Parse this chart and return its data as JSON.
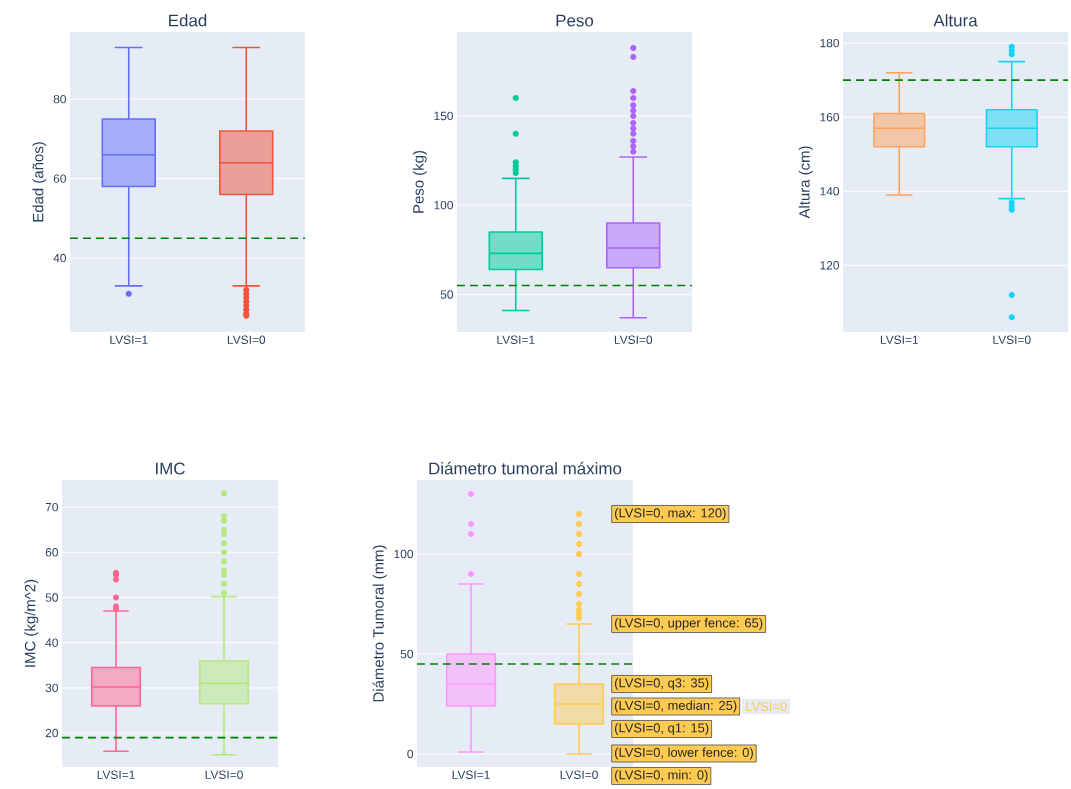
{
  "chart_data": [
    {
      "type": "box",
      "title": "Edad",
      "ylabel": "Edad (años)",
      "categories": [
        "LVSI=1",
        "LVSI=0"
      ],
      "colors": [
        "#636efa",
        "#ef553b"
      ],
      "ylim": [
        21.4,
        96.9
      ],
      "yticks": [
        40,
        60,
        80
      ],
      "grid": "y",
      "boxes": [
        {
          "low": 33,
          "q1": 58,
          "median": 66,
          "q3": 75,
          "high": 93,
          "outliers": [
            31
          ]
        },
        {
          "low": 33,
          "q1": 56,
          "median": 64,
          "q3": 72,
          "high": 93,
          "outliers": [
            32,
            31,
            30,
            29,
            28,
            27,
            26,
            25.5
          ]
        }
      ],
      "ref_lines": [
        {
          "axis": "y",
          "value": 45,
          "color": "#008000",
          "line_style": "dashed"
        }
      ]
    },
    {
      "type": "box",
      "title": "Peso",
      "ylabel": "Peso (kg)",
      "categories": [
        "LVSI=1",
        "LVSI=0"
      ],
      "colors": [
        "#00cc96",
        "#ab63fa"
      ],
      "ylim": [
        29,
        197
      ],
      "yticks": [
        50,
        100,
        150
      ],
      "grid": "y",
      "boxes": [
        {
          "low": 41,
          "q1": 64,
          "median": 73,
          "q3": 85,
          "high": 115,
          "outliers": [
            118,
            120,
            122,
            124,
            140,
            160
          ]
        },
        {
          "low": 37,
          "q1": 65,
          "median": 76,
          "q3": 90,
          "high": 127,
          "outliers": [
            130,
            133,
            136,
            140,
            143,
            146,
            150,
            153,
            156,
            160,
            164,
            183,
            188
          ]
        }
      ],
      "ref_lines": [
        {
          "axis": "y",
          "value": 55,
          "color": "#008000",
          "line_style": "dashed"
        }
      ]
    },
    {
      "type": "box",
      "title": "Altura",
      "ylabel": "Altura (cm)",
      "categories": [
        "LVSI=1",
        "LVSI=0"
      ],
      "colors": [
        "#ffa15a",
        "#19d3f3"
      ],
      "ylim": [
        102,
        183
      ],
      "yticks": [
        120,
        140,
        160,
        180
      ],
      "grid": "y",
      "boxes": [
        {
          "low": 139,
          "q1": 152,
          "median": 157,
          "q3": 161,
          "high": 172
        },
        {
          "low": 138,
          "q1": 152,
          "median": 157,
          "q3": 162,
          "high": 175,
          "outliers": [
            106,
            112,
            135,
            136,
            137,
            177,
            178,
            179
          ]
        }
      ],
      "ref_lines": [
        {
          "axis": "y",
          "value": 170,
          "color": "#008000",
          "line_style": "dashed"
        }
      ]
    },
    {
      "type": "box",
      "title": "IMC",
      "ylabel": "IMC (kg/m^2)",
      "categories": [
        "LVSI=1",
        "LVSI=0"
      ],
      "colors": [
        "#ff6692",
        "#b6e880"
      ],
      "ylim": [
        12.5,
        76
      ],
      "yticks": [
        20,
        30,
        40,
        50,
        60,
        70
      ],
      "grid": "y",
      "boxes": [
        {
          "low": 16,
          "q1": 26,
          "median": 30.2,
          "q3": 34.5,
          "high": 47,
          "outliers": [
            47.5,
            48,
            50,
            54,
            55,
            55.5
          ]
        },
        {
          "low": 15.2,
          "q1": 26.5,
          "median": 31,
          "q3": 36,
          "high": 50.2,
          "outliers": [
            51,
            53,
            55,
            56,
            58,
            60,
            62,
            64,
            65,
            67,
            68,
            73
          ]
        }
      ],
      "ref_lines": [
        {
          "axis": "y",
          "value": 19,
          "color": "#008000",
          "line_style": "dashed"
        }
      ]
    },
    {
      "type": "box",
      "title": "Diámetro tumoral máximo",
      "ylabel": "Diámetro Tumoral (mm)",
      "categories": [
        "LVSI=1",
        "LVSI=0"
      ],
      "colors": [
        "#ff97ff",
        "#fecb52"
      ],
      "ylim": [
        -6.5,
        137
      ],
      "yticks": [
        0,
        50,
        100
      ],
      "grid": "y",
      "boxes": [
        {
          "low": 1,
          "q1": 24,
          "median": 35,
          "q3": 50,
          "high": 85,
          "outliers": [
            90,
            110,
            115,
            130
          ]
        },
        {
          "low": 0,
          "q1": 15,
          "median": 25,
          "q3": 35,
          "high": 65,
          "outliers": [
            68,
            70,
            72,
            75,
            80,
            85,
            90,
            100,
            105,
            110,
            115,
            120
          ]
        }
      ],
      "ref_lines": [
        {
          "axis": "y",
          "value": 45,
          "color": "#008000",
          "line_style": "dashed"
        }
      ],
      "annotations": [
        "(LVSI=0, max: 120)",
        "(LVSI=0, upper fence: 65)",
        "(LVSI=0, q3: 35)",
        "(LVSI=0, median: 25)",
        "(LVSI=0, q1: 15)",
        "(LVSI=0, lower fence: 0)",
        "(LVSI=0, min: 0)",
        "LVSI=0"
      ]
    }
  ]
}
